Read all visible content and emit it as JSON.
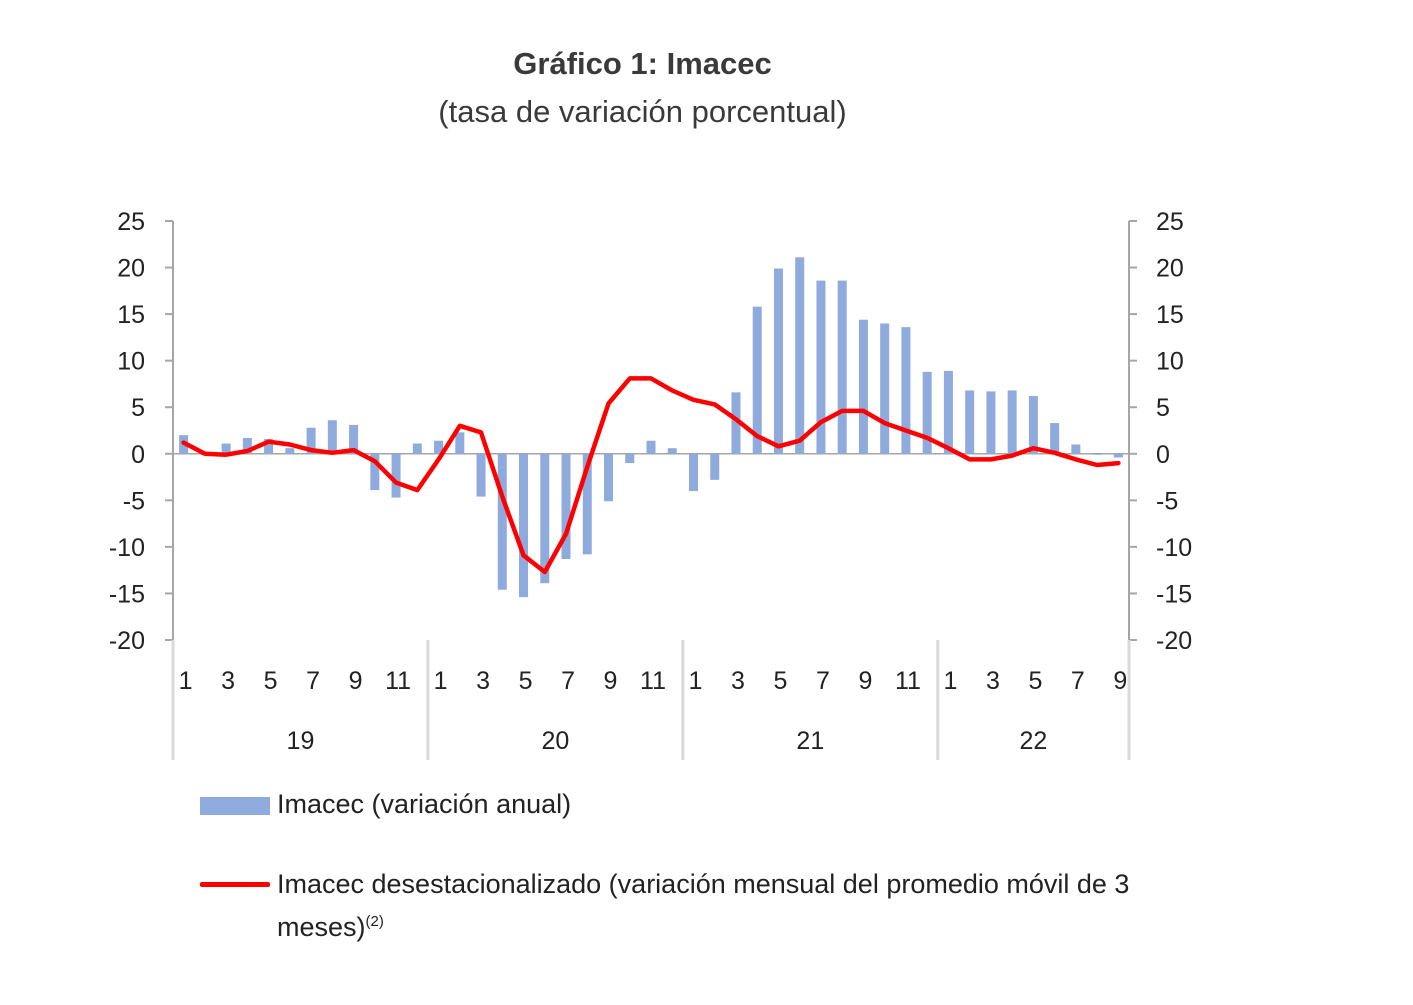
{
  "title": "Gráfico 1: Imacec",
  "subtitle": "(tasa de variación porcentual)",
  "colors": {
    "bars": "#8faadc",
    "line": "#ff0000",
    "axis": "#a6a6a6"
  },
  "legend": {
    "bars_label": "Imacec (variación anual)",
    "line_label": "Imacec desestacionalizado (variación mensual del promedio móvil de 3 meses)",
    "line_note": "(2)"
  },
  "chart_data": {
    "type": "bar+line",
    "title": "Gráfico 1: Imacec",
    "subtitle": "(tasa de variación porcentual)",
    "ylim": [
      -20,
      25
    ],
    "y_ticks": [
      25,
      20,
      15,
      10,
      5,
      0,
      -5,
      -10,
      -15,
      -20
    ],
    "y_axes": "left and right (same scale)",
    "grid": false,
    "legend_position": "bottom",
    "categories": [
      "1",
      "2",
      "3",
      "4",
      "5",
      "6",
      "7",
      "8",
      "9",
      "10",
      "11",
      "12",
      "1",
      "2",
      "3",
      "4",
      "5",
      "6",
      "7",
      "8",
      "9",
      "10",
      "11",
      "12",
      "1",
      "2",
      "3",
      "4",
      "5",
      "6",
      "7",
      "8",
      "9",
      "10",
      "11",
      "12",
      "1",
      "2",
      "3",
      "4",
      "5",
      "6",
      "7",
      "8",
      "9"
    ],
    "x_tick_labels": [
      "1",
      "3",
      "5",
      "7",
      "9",
      "11",
      "1",
      "3",
      "5",
      "7",
      "9",
      "11",
      "1",
      "3",
      "5",
      "7",
      "9",
      "11",
      "1",
      "3",
      "5",
      "7",
      "9"
    ],
    "year_groups": [
      {
        "label": "19",
        "months": 12
      },
      {
        "label": "20",
        "months": 12
      },
      {
        "label": "21",
        "months": 12
      },
      {
        "label": "22",
        "months": 9
      }
    ],
    "series": [
      {
        "name": "Imacec (variación anual)",
        "type": "bar",
        "values": [
          2.0,
          0.0,
          1.1,
          1.7,
          1.6,
          0.6,
          2.8,
          3.6,
          3.1,
          -3.9,
          -4.7,
          1.1,
          1.4,
          2.3,
          -4.6,
          -14.6,
          -15.4,
          -13.9,
          -11.3,
          -10.8,
          -5.1,
          -1.0,
          1.4,
          0.6,
          -4.0,
          -2.8,
          6.6,
          15.8,
          19.9,
          21.1,
          18.6,
          18.6,
          14.4,
          14.0,
          13.6,
          8.8,
          8.9,
          6.8,
          6.7,
          6.8,
          6.2,
          3.3,
          1.0,
          0.0,
          -0.4
        ]
      },
      {
        "name": "Imacec desestacionalizado (variación mensual del promedio móvil de 3 meses)",
        "type": "line",
        "values": [
          1.2,
          0.0,
          -0.1,
          0.3,
          1.3,
          1.0,
          0.4,
          0.1,
          0.4,
          -0.8,
          -3.1,
          -3.9,
          -0.6,
          3.0,
          2.3,
          -4.6,
          -10.9,
          -12.7,
          -8.6,
          -1.4,
          5.4,
          8.1,
          8.1,
          6.8,
          5.8,
          5.3,
          3.7,
          1.9,
          0.8,
          1.4,
          3.4,
          4.6,
          4.6,
          3.3,
          2.5,
          1.7,
          0.6,
          -0.6,
          -0.6,
          -0.2,
          0.6,
          0.1,
          -0.6,
          -1.2,
          -1.0
        ]
      }
    ]
  }
}
